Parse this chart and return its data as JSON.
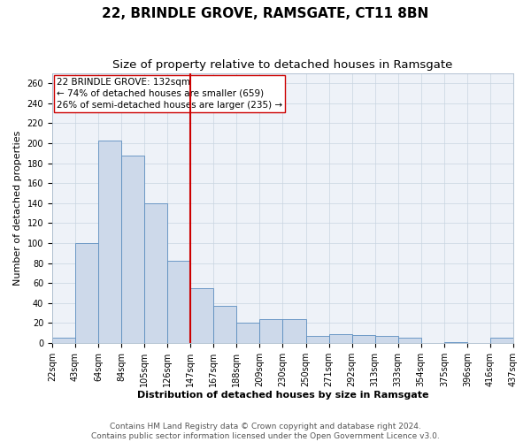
{
  "title": "22, BRINDLE GROVE, RAMSGATE, CT11 8BN",
  "subtitle": "Size of property relative to detached houses in Ramsgate",
  "xlabel": "Distribution of detached houses by size in Ramsgate",
  "ylabel": "Number of detached properties",
  "bar_values": [
    5,
    100,
    203,
    188,
    140,
    82,
    55,
    37,
    20,
    24,
    24,
    7,
    9,
    8,
    7,
    5,
    0,
    1,
    0,
    5
  ],
  "bin_labels": [
    "22sqm",
    "43sqm",
    "64sqm",
    "84sqm",
    "105sqm",
    "126sqm",
    "147sqm",
    "167sqm",
    "188sqm",
    "209sqm",
    "230sqm",
    "250sqm",
    "271sqm",
    "292sqm",
    "313sqm",
    "333sqm",
    "354sqm",
    "375sqm",
    "396sqm",
    "416sqm",
    "437sqm"
  ],
  "bar_color": "#cdd9ea",
  "bar_edge_color": "#5b8dbf",
  "vline_x_bar_index": 5,
  "vline_color": "#cc0000",
  "annotation_text": "22 BRINDLE GROVE: 132sqm\n← 74% of detached houses are smaller (659)\n26% of semi-detached houses are larger (235) →",
  "annotation_box_color": "#ffffff",
  "annotation_box_edge_color": "#cc0000",
  "ylim": [
    0,
    270
  ],
  "yticks": [
    0,
    20,
    40,
    60,
    80,
    100,
    120,
    140,
    160,
    180,
    200,
    220,
    240,
    260
  ],
  "footer_line1": "Contains HM Land Registry data © Crown copyright and database right 2024.",
  "footer_line2": "Contains public sector information licensed under the Open Government Licence v3.0.",
  "title_fontsize": 11,
  "subtitle_fontsize": 9.5,
  "axis_label_fontsize": 8,
  "tick_fontsize": 7,
  "annotation_fontsize": 7.5,
  "footer_fontsize": 6.5,
  "bg_color": "#ffffff",
  "plot_bg_color": "#eef2f8",
  "grid_color": "#c8d4e0"
}
